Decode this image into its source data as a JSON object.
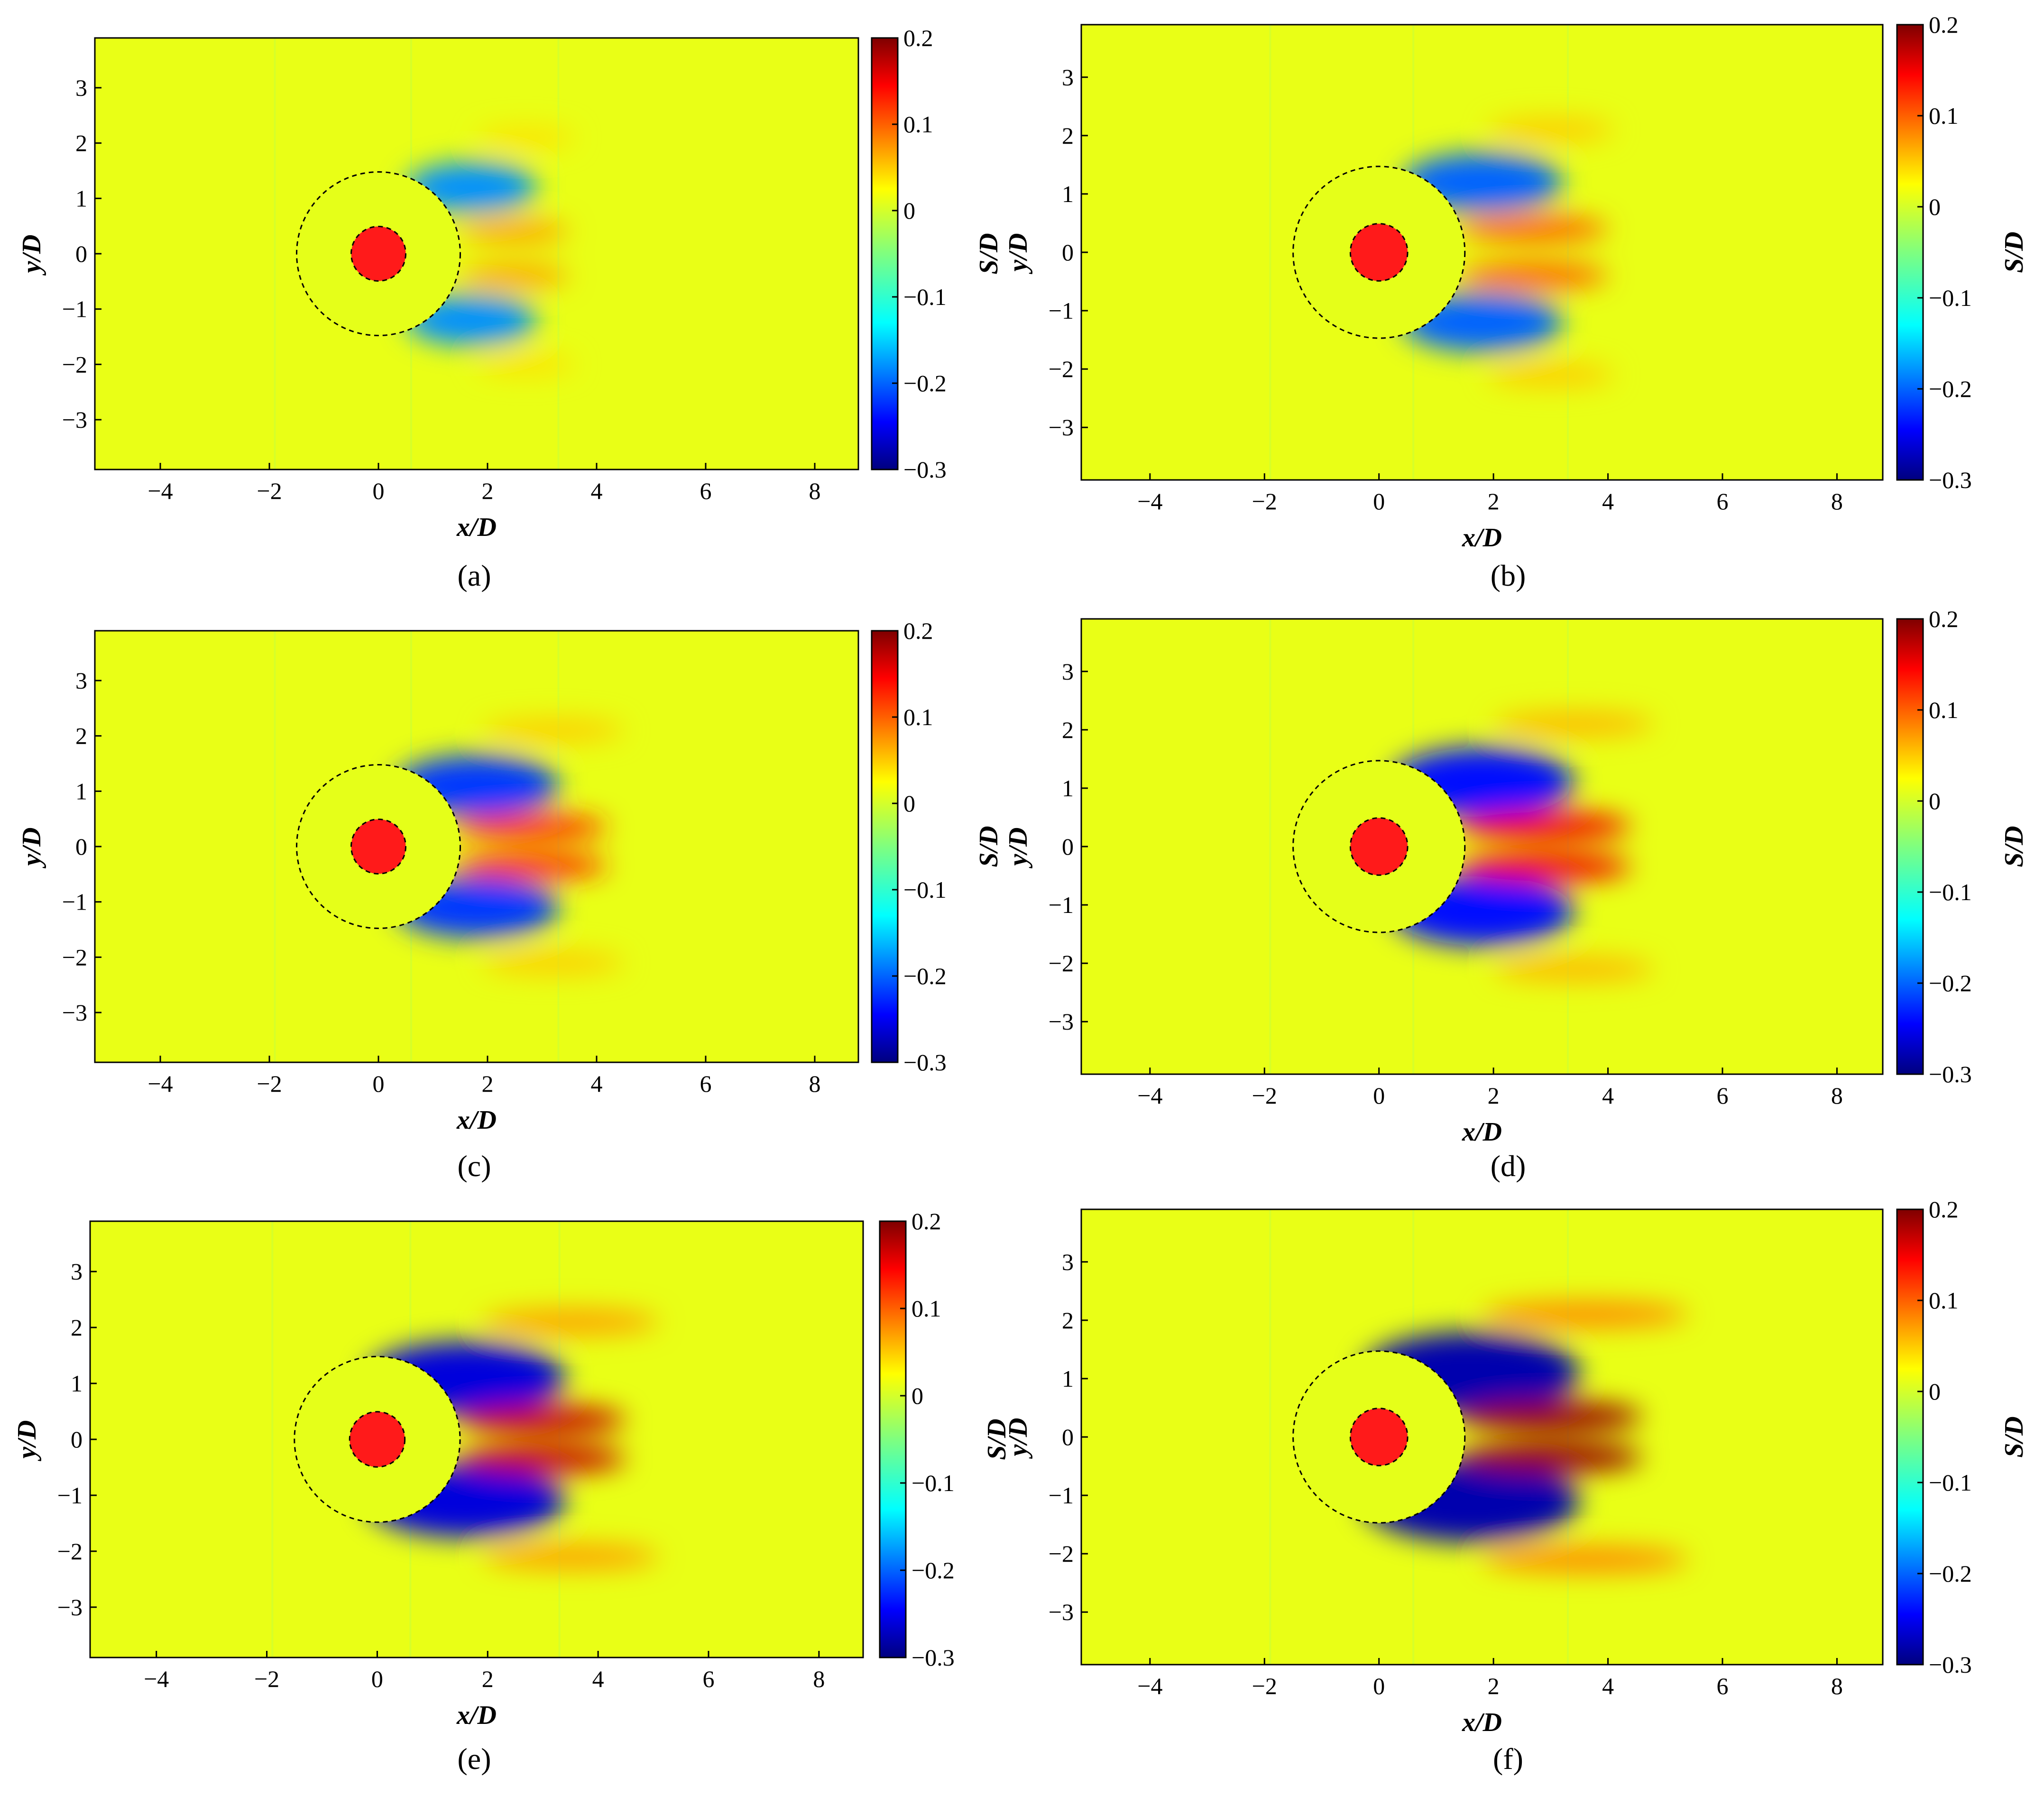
{
  "chart_data": [
    {
      "type": "heatmap",
      "panel_label": "(a)",
      "xlabel": "x/D",
      "ylabel": "y/D",
      "colorbar_label": "S/D",
      "xlim": [
        -5.2,
        8.8
      ],
      "ylim": [
        -3.9,
        3.9
      ],
      "xticks": [
        -4,
        -2,
        0,
        2,
        4,
        6,
        8
      ],
      "yticks": [
        -3,
        -2,
        -1,
        0,
        1,
        2,
        3
      ],
      "colorbar_range": [
        -0.3,
        0.2
      ],
      "colorbar_ticks": [
        -0.3,
        -0.2,
        -0.1,
        0,
        0.1,
        0.2
      ],
      "monopile_radius": 0.5,
      "scour_radius": 1.5,
      "features": [
        {
          "x": 1.7,
          "y": 1.2,
          "rx": 1.2,
          "ry": 0.45,
          "value": -0.18
        },
        {
          "x": 1.7,
          "y": -1.2,
          "rx": 1.2,
          "ry": 0.45,
          "value": -0.18
        },
        {
          "x": 2.5,
          "y": 0.4,
          "rx": 1.0,
          "ry": 0.2,
          "value": 0.07
        },
        {
          "x": 2.5,
          "y": -0.4,
          "rx": 1.0,
          "ry": 0.2,
          "value": 0.07
        },
        {
          "x": 2.7,
          "y": 2.1,
          "rx": 0.9,
          "ry": 0.18,
          "value": 0.04
        },
        {
          "x": 2.7,
          "y": -2.0,
          "rx": 0.9,
          "ry": 0.18,
          "value": 0.04
        }
      ]
    },
    {
      "type": "heatmap",
      "panel_label": "(b)",
      "xlabel": "x/D",
      "ylabel": "y/D",
      "colorbar_label": "S/D",
      "xlim": [
        -5.2,
        8.8
      ],
      "ylim": [
        -3.9,
        3.9
      ],
      "xticks": [
        -4,
        -2,
        0,
        2,
        4,
        6,
        8
      ],
      "yticks": [
        -3,
        -2,
        -1,
        0,
        1,
        2,
        3
      ],
      "colorbar_range": [
        -0.3,
        0.2
      ],
      "colorbar_ticks": [
        -0.3,
        -0.2,
        -0.1,
        0,
        0.1,
        0.2
      ],
      "monopile_radius": 0.5,
      "scour_radius": 1.5,
      "features": [
        {
          "x": 1.8,
          "y": 1.2,
          "rx": 1.4,
          "ry": 0.5,
          "value": -0.2
        },
        {
          "x": 1.8,
          "y": -1.2,
          "rx": 1.4,
          "ry": 0.5,
          "value": -0.2
        },
        {
          "x": 2.7,
          "y": 0.4,
          "rx": 1.3,
          "ry": 0.22,
          "value": 0.1
        },
        {
          "x": 2.7,
          "y": -0.4,
          "rx": 1.3,
          "ry": 0.22,
          "value": 0.1
        },
        {
          "x": 3.0,
          "y": 2.1,
          "rx": 1.1,
          "ry": 0.2,
          "value": 0.05
        },
        {
          "x": 3.0,
          "y": -2.1,
          "rx": 1.1,
          "ry": 0.2,
          "value": 0.05
        }
      ]
    },
    {
      "type": "heatmap",
      "panel_label": "(c)",
      "xlabel": "x/D",
      "ylabel": "y/D",
      "colorbar_label": "S/D",
      "xlim": [
        -5.2,
        8.8
      ],
      "ylim": [
        -3.9,
        3.9
      ],
      "xticks": [
        -4,
        -2,
        0,
        2,
        4,
        6,
        8
      ],
      "yticks": [
        -3,
        -2,
        -1,
        0,
        1,
        2,
        3
      ],
      "colorbar_range": [
        -0.3,
        0.2
      ],
      "colorbar_ticks": [
        -0.3,
        -0.2,
        -0.1,
        0,
        0.1,
        0.2
      ],
      "monopile_radius": 0.5,
      "scour_radius": 1.5,
      "features": [
        {
          "x": 1.8,
          "y": 1.1,
          "rx": 1.5,
          "ry": 0.55,
          "value": -0.22
        },
        {
          "x": 1.8,
          "y": -1.1,
          "rx": 1.5,
          "ry": 0.55,
          "value": -0.22
        },
        {
          "x": 2.8,
          "y": 0.35,
          "rx": 1.4,
          "ry": 0.22,
          "value": 0.13
        },
        {
          "x": 2.8,
          "y": -0.35,
          "rx": 1.4,
          "ry": 0.22,
          "value": 0.13
        },
        {
          "x": 3.2,
          "y": 2.1,
          "rx": 1.3,
          "ry": 0.2,
          "value": 0.05
        },
        {
          "x": 3.2,
          "y": -2.1,
          "rx": 1.3,
          "ry": 0.2,
          "value": 0.05
        }
      ]
    },
    {
      "type": "heatmap",
      "panel_label": "(d)",
      "xlabel": "x/D",
      "ylabel": "y/D",
      "colorbar_label": "S/D",
      "xlim": [
        -5.2,
        8.8
      ],
      "ylim": [
        -3.9,
        3.9
      ],
      "xticks": [
        -4,
        -2,
        0,
        2,
        4,
        6,
        8
      ],
      "yticks": [
        -3,
        -2,
        -1,
        0,
        1,
        2,
        3
      ],
      "colorbar_range": [
        -0.3,
        0.2
      ],
      "colorbar_ticks": [
        -0.3,
        -0.2,
        -0.1,
        0,
        0.1,
        0.2
      ],
      "monopile_radius": 0.5,
      "scour_radius": 1.5,
      "features": [
        {
          "x": 1.8,
          "y": 1.1,
          "rx": 1.6,
          "ry": 0.6,
          "value": -0.24
        },
        {
          "x": 1.8,
          "y": -1.1,
          "rx": 1.6,
          "ry": 0.6,
          "value": -0.24
        },
        {
          "x": 2.9,
          "y": 0.35,
          "rx": 1.5,
          "ry": 0.24,
          "value": 0.15
        },
        {
          "x": 2.9,
          "y": -0.35,
          "rx": 1.5,
          "ry": 0.24,
          "value": 0.15
        },
        {
          "x": 3.4,
          "y": 2.1,
          "rx": 1.4,
          "ry": 0.2,
          "value": 0.06
        },
        {
          "x": 3.4,
          "y": -2.1,
          "rx": 1.4,
          "ry": 0.2,
          "value": 0.06
        }
      ]
    },
    {
      "type": "heatmap",
      "panel_label": "(e)",
      "xlabel": "x/D",
      "ylabel": "y/D",
      "colorbar_label": "S/D",
      "xlim": [
        -5.2,
        8.8
      ],
      "ylim": [
        -3.9,
        3.9
      ],
      "xticks": [
        -4,
        -2,
        0,
        2,
        4,
        6,
        8
      ],
      "yticks": [
        -3,
        -2,
        -1,
        0,
        1,
        2,
        3
      ],
      "colorbar_range": [
        -0.3,
        0.2
      ],
      "colorbar_ticks": [
        -0.3,
        -0.2,
        -0.1,
        0,
        0.1,
        0.2
      ],
      "monopile_radius": 0.5,
      "scour_radius": 1.5,
      "features": [
        {
          "x": 1.6,
          "y": 1.1,
          "rx": 1.8,
          "ry": 0.65,
          "value": -0.26
        },
        {
          "x": 1.6,
          "y": -1.1,
          "rx": 1.8,
          "ry": 0.65,
          "value": -0.26
        },
        {
          "x": 3.0,
          "y": 0.35,
          "rx": 1.5,
          "ry": 0.25,
          "value": 0.17
        },
        {
          "x": 3.0,
          "y": -0.35,
          "rx": 1.5,
          "ry": 0.25,
          "value": 0.17
        },
        {
          "x": 3.5,
          "y": 2.1,
          "rx": 1.6,
          "ry": 0.22,
          "value": 0.07
        },
        {
          "x": 3.5,
          "y": -2.1,
          "rx": 1.6,
          "ry": 0.22,
          "value": 0.07
        }
      ]
    },
    {
      "type": "heatmap",
      "panel_label": "(f)",
      "xlabel": "x/D",
      "ylabel": "y/D",
      "colorbar_label": "S/D",
      "xlim": [
        -5.2,
        8.8
      ],
      "ylim": [
        -3.9,
        3.9
      ],
      "xticks": [
        -4,
        -2,
        0,
        2,
        4,
        6,
        8
      ],
      "yticks": [
        -3,
        -2,
        -1,
        0,
        1,
        2,
        3
      ],
      "colorbar_range": [
        -0.3,
        0.2
      ],
      "colorbar_ticks": [
        -0.3,
        -0.2,
        -0.1,
        0,
        0.1,
        0.2
      ],
      "monopile_radius": 0.5,
      "scour_radius": 1.5,
      "features": [
        {
          "x": 1.6,
          "y": 1.1,
          "rx": 1.9,
          "ry": 0.7,
          "value": -0.28
        },
        {
          "x": 1.6,
          "y": -1.1,
          "rx": 1.9,
          "ry": 0.7,
          "value": -0.28
        },
        {
          "x": 3.0,
          "y": 0.35,
          "rx": 1.6,
          "ry": 0.26,
          "value": 0.19
        },
        {
          "x": 3.0,
          "y": -0.35,
          "rx": 1.6,
          "ry": 0.26,
          "value": 0.19
        },
        {
          "x": 3.6,
          "y": 2.1,
          "rx": 1.8,
          "ry": 0.22,
          "value": 0.08
        },
        {
          "x": 3.6,
          "y": -2.1,
          "rx": 1.8,
          "ry": 0.22,
          "value": 0.08
        }
      ]
    }
  ]
}
